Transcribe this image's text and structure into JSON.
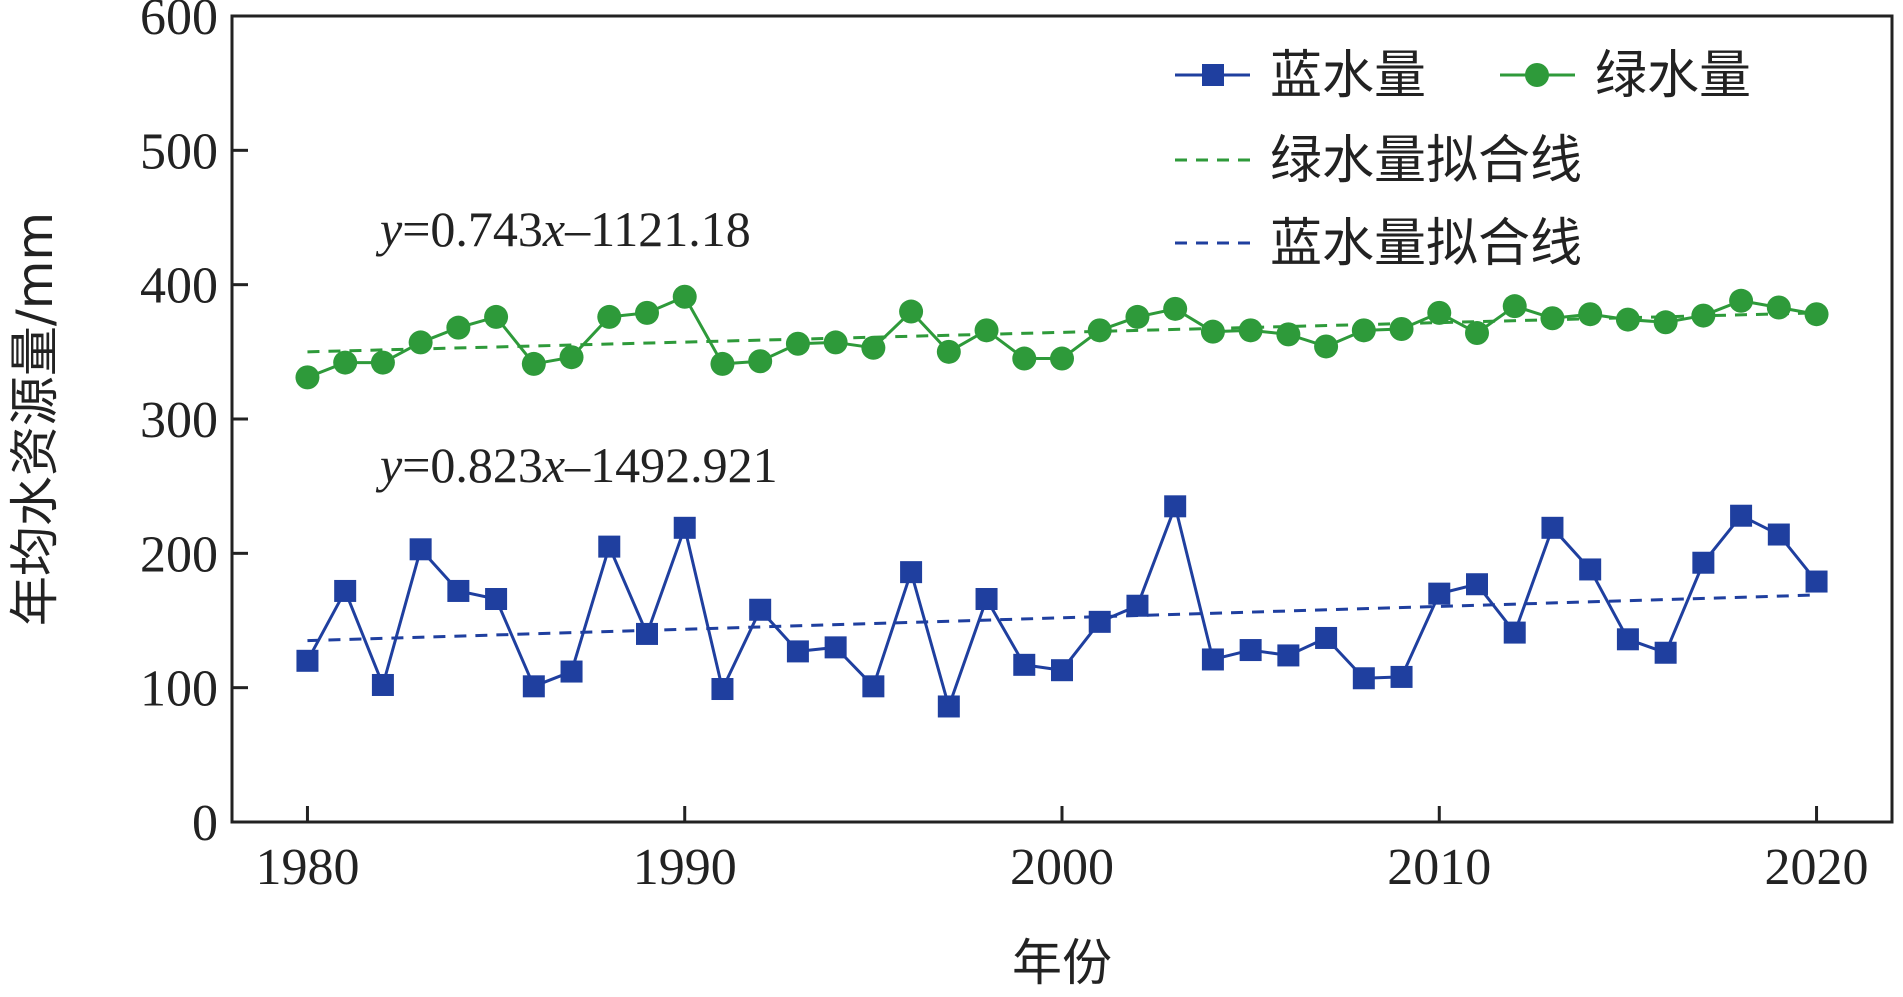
{
  "chart_data": {
    "type": "line",
    "title": "",
    "xlabel": "年份",
    "ylabel": "年均水资源量/mm",
    "xlim": [
      1978,
      2022
    ],
    "ylim": [
      0,
      600
    ],
    "x_ticks": [
      1980,
      1990,
      2000,
      2010,
      2020
    ],
    "y_ticks": [
      0,
      100,
      200,
      300,
      400,
      500,
      600
    ],
    "x": [
      1980,
      1981,
      1982,
      1983,
      1984,
      1985,
      1986,
      1987,
      1988,
      1989,
      1990,
      1991,
      1992,
      1993,
      1994,
      1995,
      1996,
      1997,
      1998,
      1999,
      2000,
      2001,
      2002,
      2003,
      2004,
      2005,
      2006,
      2007,
      2008,
      2009,
      2010,
      2011,
      2012,
      2013,
      2014,
      2015,
      2016,
      2017,
      2018,
      2019,
      2020
    ],
    "series": [
      {
        "name": "蓝水量",
        "color": "#1f3f9f",
        "marker": "square",
        "values": [
          120,
          172,
          102,
          203,
          172,
          166,
          101,
          112,
          205,
          140,
          219,
          99,
          158,
          127,
          130,
          101,
          186,
          86,
          166,
          117,
          113,
          149,
          161,
          235,
          121,
          128,
          124,
          137,
          107,
          108,
          170,
          177,
          141,
          219,
          188,
          136,
          126,
          193,
          228,
          214,
          179
        ]
      },
      {
        "name": "绿水量",
        "color": "#2e9a3a",
        "marker": "circle",
        "values": [
          331,
          342,
          342,
          357,
          368,
          376,
          341,
          346,
          376,
          379,
          391,
          341,
          343,
          356,
          357,
          353,
          380,
          350,
          366,
          345,
          345,
          366,
          376,
          382,
          365,
          366,
          363,
          354,
          366,
          367,
          379,
          364,
          384,
          375,
          378,
          374,
          372,
          377,
          388,
          383,
          378
        ]
      }
    ],
    "fit_lines": [
      {
        "name": "绿水量拟合线",
        "color": "#2e9a3a",
        "style": "dashed",
        "start": [
          1980,
          350
        ],
        "end": [
          2020,
          379
        ]
      },
      {
        "name": "蓝水量拟合线",
        "color": "#1f3f9f",
        "style": "dashed",
        "start": [
          1980,
          135
        ],
        "end": [
          2020,
          169
        ]
      }
    ],
    "annotations": [
      {
        "var": "y",
        "text": "=0.743",
        "var2": "x",
        "text2": "–1121.18"
      },
      {
        "var": "y",
        "text": "=0.823",
        "var2": "x",
        "text2": "–1492.921"
      }
    ],
    "legend": {
      "placement": "top-right",
      "entries": [
        "蓝水量",
        "绿水量",
        "绿水量拟合线",
        "蓝水量拟合线"
      ]
    }
  }
}
